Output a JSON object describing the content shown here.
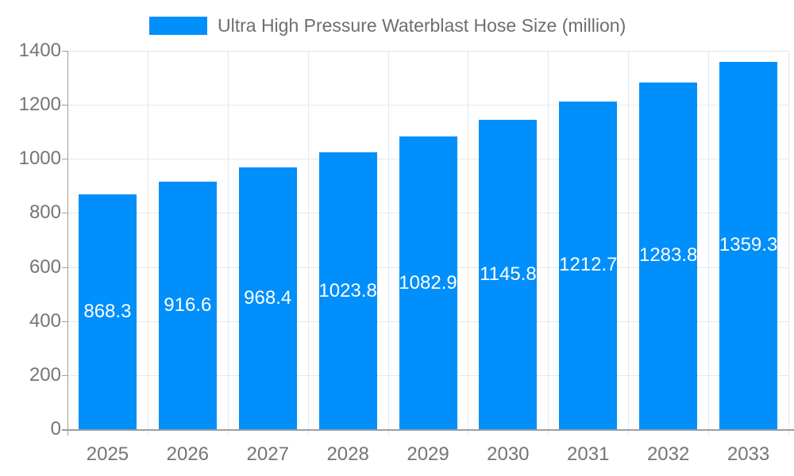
{
  "legend": {
    "label": "Ultra High Pressure Waterblast Hose Size (million)"
  },
  "chart_data": {
    "type": "bar",
    "title": "Ultra High Pressure Waterblast Hose Size (million)",
    "categories": [
      "2025",
      "2026",
      "2027",
      "2028",
      "2029",
      "2030",
      "2031",
      "2032",
      "2033"
    ],
    "values": [
      868.3,
      916.6,
      968.4,
      1023.8,
      1082.9,
      1145.8,
      1212.7,
      1283.8,
      1359.3
    ],
    "xlabel": "",
    "ylabel": "",
    "ylim": [
      0,
      1400
    ],
    "yticks": [
      0,
      200,
      400,
      600,
      800,
      1000,
      1200,
      1400
    ],
    "grid": true,
    "legend_position": "top",
    "value_labels": "inside-center",
    "colors": {
      "bar": "#008FFB",
      "grid_line": "#e7e7e7",
      "axis_line": "#9e9e9e",
      "axis_text": "#757575",
      "legend_text": "#6e6e6e",
      "value_label_text": "#ffffff",
      "background": "#ffffff"
    }
  }
}
